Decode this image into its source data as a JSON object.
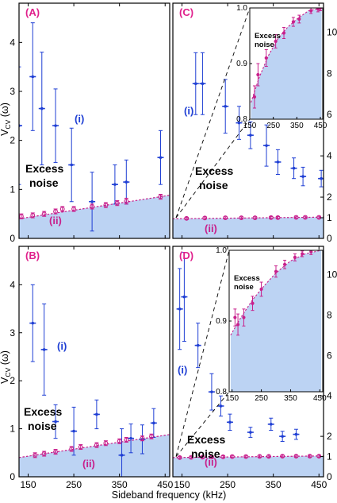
{
  "figure": {
    "xlabel": "Sideband frequency (kHz)",
    "ylabel_main": "V",
    "ylabel_sub": "CV",
    "ylabel_tail": " (ω)",
    "excess_noise_line1": "Excess",
    "excess_noise_line2": "noise",
    "series_label_i": "(i)",
    "series_label_ii": "(ii)"
  },
  "colors": {
    "blue": "#1f3fd4",
    "magenta": "#c8208c",
    "fill": "#bcd3f3",
    "panel_label": "#e0208c"
  },
  "chart_data": [
    {
      "panel": "(A)",
      "type": "scatter",
      "xlim": [
        130,
        460
      ],
      "ylim": [
        0,
        4.8
      ],
      "xticks": [
        150,
        250,
        350,
        450
      ],
      "yticks_left": [
        0,
        1,
        2,
        3,
        4
      ],
      "fill_curve": {
        "x": [
          130,
          460
        ],
        "y": [
          0.4,
          0.88
        ]
      },
      "series": [
        {
          "name": "(i)",
          "color": "#1f3fd4",
          "x": [
            130,
            160,
            180,
            210,
            245,
            290,
            340,
            365,
            440
          ],
          "y": [
            2.3,
            3.3,
            2.65,
            2.3,
            1.5,
            0.75,
            1.1,
            1.15,
            1.65
          ],
          "err": [
            1.2,
            1.1,
            1.15,
            0.75,
            0.75,
            0.6,
            0.4,
            0.45,
            0.55
          ]
        },
        {
          "name": "(ii)",
          "color": "#c8208c",
          "x": [
            135,
            160,
            185,
            210,
            225,
            250,
            290,
            320,
            345,
            365,
            440
          ],
          "y": [
            0.45,
            0.47,
            0.5,
            0.55,
            0.6,
            0.6,
            0.65,
            0.68,
            0.72,
            0.76,
            0.85
          ],
          "err": [
            0.05,
            0.05,
            0.05,
            0.05,
            0.05,
            0.05,
            0.05,
            0.05,
            0.05,
            0.06,
            0.05
          ]
        }
      ]
    },
    {
      "panel": "(B)",
      "type": "scatter",
      "xlim": [
        130,
        460
      ],
      "ylim": [
        0,
        4.8
      ],
      "xticks": [
        150,
        250,
        350,
        450
      ],
      "xtick_labels": [
        "150",
        "250",
        "350",
        "450"
      ],
      "yticks_left": [
        0,
        1,
        2,
        3,
        4
      ],
      "fill_curve": {
        "x": [
          130,
          460
        ],
        "y": [
          0.4,
          0.88
        ]
      },
      "series": [
        {
          "name": "(i)",
          "color": "#1f3fd4",
          "x": [
            160,
            185,
            210,
            250,
            300,
            355,
            375,
            400,
            425
          ],
          "y": [
            3.2,
            2.65,
            1.15,
            0.95,
            1.3,
            0.45,
            0.8,
            0.78,
            1.12
          ],
          "err": [
            0.8,
            0.95,
            0.35,
            0.5,
            0.3,
            0.55,
            0.3,
            0.3,
            0.3
          ]
        },
        {
          "name": "(ii)",
          "color": "#c8208c",
          "x": [
            165,
            185,
            210,
            245,
            265,
            300,
            320,
            350,
            365,
            400,
            420
          ],
          "y": [
            0.45,
            0.48,
            0.52,
            0.58,
            0.62,
            0.66,
            0.7,
            0.74,
            0.77,
            0.8,
            0.84
          ],
          "err": [
            0.05,
            0.05,
            0.05,
            0.05,
            0.05,
            0.05,
            0.05,
            0.05,
            0.05,
            0.05,
            0.05
          ]
        }
      ]
    },
    {
      "panel": "(C)",
      "type": "scatter",
      "xlim": [
        130,
        460
      ],
      "ylim": [
        0,
        11.4
      ],
      "xticks": [
        150,
        250,
        350,
        450
      ],
      "yticks_right": [
        0,
        1,
        2,
        4,
        6,
        8,
        10
      ],
      "fill_curve": {
        "x": [
          130,
          460
        ],
        "y": [
          0.95,
          1.03
        ]
      },
      "series": [
        {
          "name": "(i)",
          "color": "#1f3fd4",
          "x": [
            180,
            195,
            245,
            275,
            300,
            335,
            360,
            395,
            415,
            455
          ],
          "y": [
            7.5,
            7.5,
            6.4,
            5.6,
            5.0,
            4.5,
            3.7,
            3.4,
            3.0,
            2.9
          ],
          "err": [
            1.5,
            1.5,
            1.3,
            0.8,
            0.65,
            1.0,
            0.6,
            0.5,
            0.45,
            0.4
          ]
        },
        {
          "name": "(ii)",
          "color": "#c8208c",
          "x": [
            160,
            200,
            245,
            280,
            310,
            345,
            360,
            400,
            420,
            450
          ],
          "y": [
            0.97,
            0.99,
            1.0,
            1.0,
            1.0,
            1.01,
            1.01,
            1.02,
            1.02,
            1.02
          ],
          "err": [
            0.05,
            0.05,
            0.05,
            0.05,
            0.05,
            0.05,
            0.05,
            0.05,
            0.05,
            0.05
          ]
        }
      ],
      "inset": {
        "xlim": [
          150,
          460
        ],
        "ylim": [
          0.8,
          1.0
        ],
        "xticks": [
          150,
          250,
          350,
          450
        ],
        "yticks": [
          0.8,
          0.9,
          1.0
        ],
        "ytick_labels": [
          "0.8",
          "0.9",
          "1.0"
        ],
        "fill_curve": {
          "x": [
            155,
            190,
            230,
            270,
            310,
            350,
            400,
            455
          ],
          "y": [
            0.83,
            0.875,
            0.915,
            0.945,
            0.965,
            0.98,
            0.995,
            1.0
          ]
        },
        "series": {
          "x": [
            170,
            185,
            220,
            260,
            295,
            335,
            360,
            410,
            440,
            450
          ],
          "y": [
            0.84,
            0.88,
            0.91,
            0.94,
            0.955,
            0.975,
            0.98,
            0.995,
            0.998,
            1.0
          ],
          "err": [
            0.02,
            0.02,
            0.015,
            0.012,
            0.01,
            0.008,
            0.007,
            0.005,
            0.005,
            0.005
          ]
        }
      }
    },
    {
      "panel": "(D)",
      "type": "scatter",
      "xlim": [
        130,
        460
      ],
      "ylim": [
        0,
        11.4
      ],
      "xticks": [
        150,
        250,
        350,
        450
      ],
      "xtick_labels": [
        "150",
        "250",
        "350",
        "450"
      ],
      "yticks_right": [
        0,
        1,
        2,
        4,
        6,
        8,
        10
      ],
      "fill_curve": {
        "x": [
          130,
          460
        ],
        "y": [
          0.95,
          1.03
        ]
      },
      "series": [
        {
          "name": "(i)",
          "color": "#1f3fd4",
          "x": [
            145,
            155,
            185,
            215,
            235,
            255,
            300,
            345,
            370,
            400
          ],
          "y": [
            8.3,
            8.9,
            6.5,
            4.2,
            3.5,
            2.7,
            2.2,
            2.6,
            2.0,
            2.1
          ],
          "err": [
            2.0,
            2.2,
            1.1,
            0.9,
            0.5,
            0.4,
            0.25,
            0.3,
            0.25,
            0.25
          ]
        },
        {
          "name": "(ii)",
          "color": "#c8208c",
          "x": [
            145,
            170,
            195,
            215,
            240,
            260,
            290,
            320,
            340,
            370,
            400,
            430,
            450
          ],
          "y": [
            0.95,
            0.96,
            0.97,
            0.98,
            0.99,
            1.0,
            1.0,
            1.01,
            1.01,
            1.02,
            1.02,
            1.02,
            1.02
          ],
          "err": [
            0.05,
            0.05,
            0.05,
            0.05,
            0.05,
            0.05,
            0.05,
            0.05,
            0.05,
            0.05,
            0.05,
            0.05,
            0.05
          ]
        }
      ],
      "inset": {
        "xlim": [
          140,
          460
        ],
        "ylim": [
          0.8,
          1.0
        ],
        "xticks": [
          150,
          250,
          350,
          450
        ],
        "yticks": [
          0.8,
          0.9,
          1.0
        ],
        "ytick_labels": [
          "0.8",
          "0.9",
          "1.0"
        ],
        "fill_curve": {
          "x": [
            145,
            180,
            220,
            260,
            300,
            350,
            400,
            455
          ],
          "y": [
            0.88,
            0.905,
            0.93,
            0.95,
            0.968,
            0.985,
            0.995,
            1.0
          ]
        },
        "series": {
          "x": [
            160,
            170,
            190,
            220,
            250,
            300,
            330,
            365,
            390,
            420
          ],
          "y": [
            0.905,
            0.895,
            0.905,
            0.925,
            0.945,
            0.97,
            0.98,
            0.99,
            0.995,
            0.998
          ],
          "err": [
            0.012,
            0.015,
            0.012,
            0.01,
            0.01,
            0.008,
            0.006,
            0.005,
            0.004,
            0.004
          ]
        }
      }
    }
  ]
}
